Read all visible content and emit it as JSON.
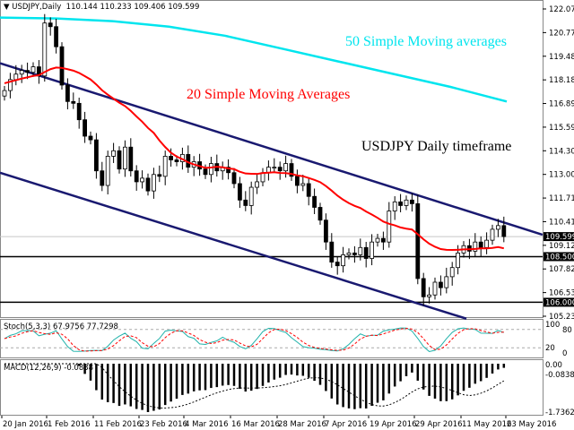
{
  "header": {
    "symbol_timeframe": "USDJPY,Daily",
    "ohlc": "110.144 110.233 109.406 109.599"
  },
  "colors": {
    "sma20": "#ff0000",
    "sma50": "#00e5ee",
    "channel": "#191970",
    "candle": "#000000",
    "stoch_main": "#20b2aa",
    "stoch_signal": "#ff0000"
  },
  "annotations": {
    "sma50": "50 Simple Moving averages",
    "sma20": "20 Simple Moving Averages",
    "title": "USDJPY Daily timeframe"
  },
  "chart_data": {
    "type": "candlestick",
    "price_ticks": [
      "122.070",
      "120.775",
      "119.480",
      "118.185",
      "116.890",
      "115.595",
      "114.300",
      "113.005",
      "111.710",
      "110.415",
      "109.120",
      "107.825",
      "106.530",
      "105.235"
    ],
    "price_range": [
      105.235,
      122.07
    ],
    "current_price_label": "109.599",
    "current_price": 109.599,
    "levels": [
      {
        "label": "108.500",
        "value": 108.5
      },
      {
        "label": "106.000",
        "value": 106.0
      }
    ],
    "date_labels": [
      "20 Jan 2016",
      "1 Feb 2016",
      "11 Feb 2016",
      "23 Feb 2016",
      "4 Mar 2016",
      "16 Mar 2016",
      "28 Mar 2016",
      "7 Apr 2016",
      "19 Apr 2016",
      "29 Apr 2016",
      "11 May 2016",
      "23 May 2016"
    ],
    "closes": [
      117.6,
      118.2,
      118.5,
      118.7,
      118.6,
      118.9,
      118.4,
      121.3,
      121.1,
      120.0,
      117.9,
      117.0,
      116.9,
      116.0,
      115.1,
      114.9,
      113.2,
      112.4,
      114.0,
      114.3,
      113.3,
      114.5,
      113.2,
      112.6,
      112.8,
      112.1,
      113.0,
      112.9,
      114.0,
      113.8,
      113.7,
      114.1,
      113.4,
      113.7,
      113.3,
      113.0,
      113.6,
      113.2,
      113.4,
      113.1,
      112.5,
      111.6,
      111.3,
      112.3,
      112.6,
      113.1,
      113.4,
      113.4,
      113.2,
      113.6,
      112.9,
      112.4,
      112.5,
      111.8,
      111.2,
      110.5,
      109.3,
      108.2,
      108.0,
      108.6,
      108.7,
      108.6,
      109.0,
      108.4,
      109.3,
      109.5,
      109.3,
      111.0,
      111.5,
      111.3,
      111.6,
      111.4,
      107.3,
      106.3,
      106.4,
      107.1,
      106.8,
      107.4,
      107.9,
      108.7,
      109.1,
      108.8,
      109.3,
      109.0,
      109.4,
      110.0,
      110.2,
      109.6
    ],
    "sma50_points": [
      121.6,
      121.55,
      121.4,
      121.1,
      120.6,
      119.9,
      119.2,
      118.5,
      117.8,
      117.0
    ],
    "channel_upper": [
      119.1,
      109.7
    ],
    "channel_lower": [
      113.1,
      105.1
    ],
    "stoch": {
      "label": "Stoch(5,3,3) 67.9756 77.7298",
      "levels": [
        80,
        20
      ],
      "ticks": [
        "100",
        "80",
        "20",
        "0"
      ]
    },
    "macd": {
      "label": "MACD(12,26,9) -0.0838",
      "ticks": [
        "0.00",
        "-0.0838",
        "-1.7362"
      ],
      "min": -1.7362
    }
  }
}
